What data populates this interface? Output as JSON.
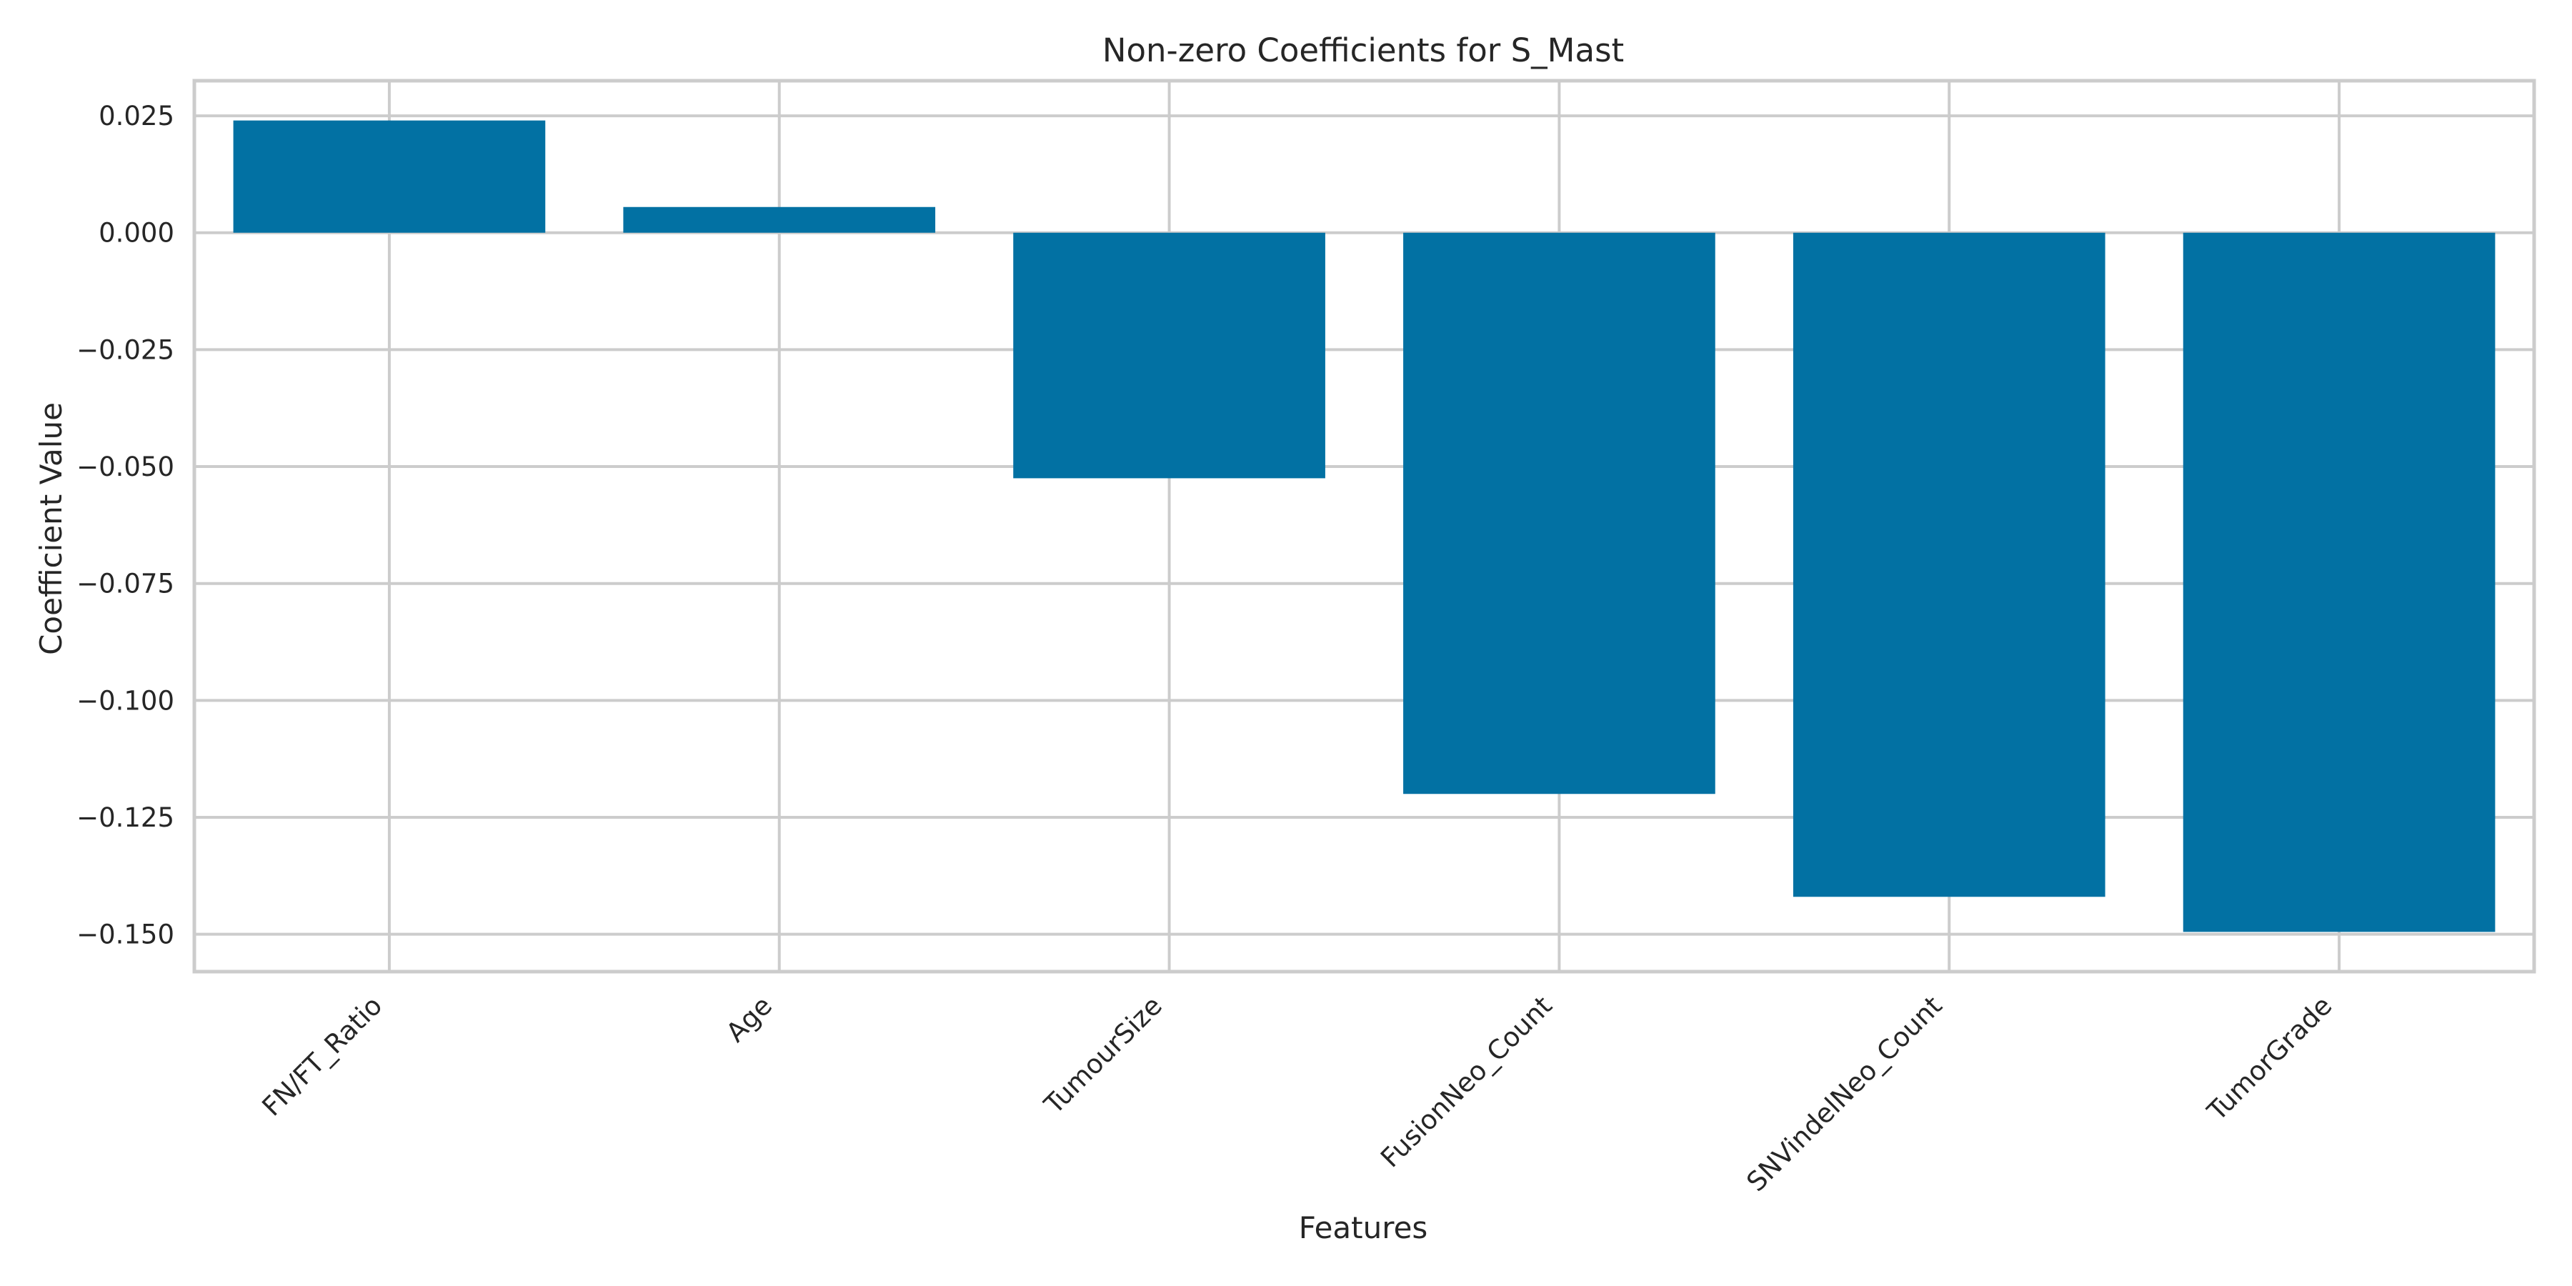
{
  "chart_data": {
    "type": "bar",
    "title": "Non-zero Coefficients for S_Mast",
    "xlabel": "Features",
    "ylabel": "Coefficient Value",
    "categories": [
      "FN/FT_Ratio",
      "Age",
      "TumourSize",
      "FusionNeo_Count",
      "SNVindelNeo_Count",
      "TumorGrade"
    ],
    "values": [
      0.024,
      0.0055,
      -0.0525,
      -0.12,
      -0.142,
      -0.1495
    ],
    "ylim": [
      -0.158,
      0.0325
    ],
    "yticks": [
      0.025,
      0.0,
      -0.025,
      -0.05,
      -0.075,
      -0.1,
      -0.125,
      -0.15
    ],
    "ytick_labels": [
      "0.025",
      "0.000",
      "−0.025",
      "−0.050",
      "−0.075",
      "−0.100",
      "−0.125",
      "−0.150"
    ],
    "grid": true,
    "bar_color": "#0271a3",
    "grid_color": "#cccccc"
  }
}
